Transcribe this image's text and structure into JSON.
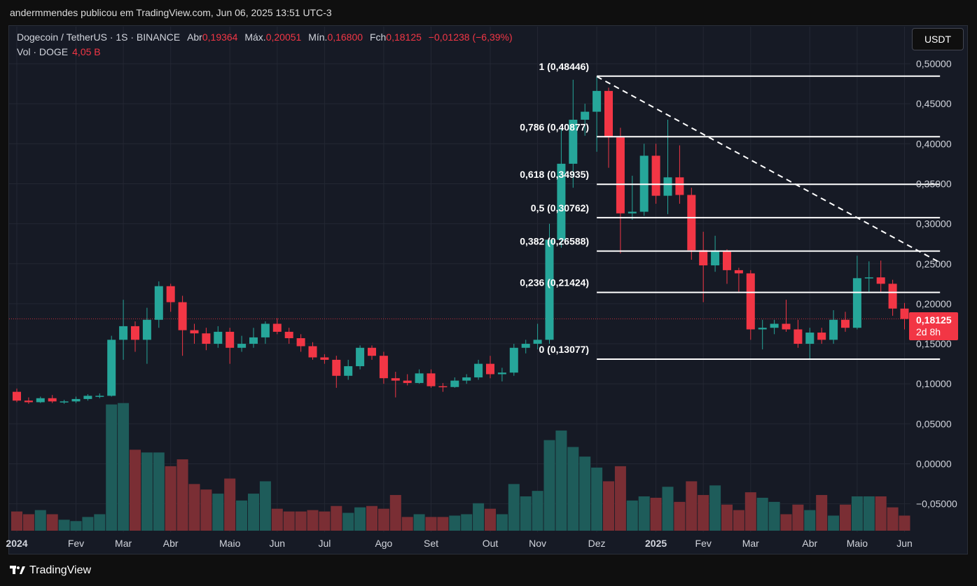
{
  "header": {
    "caption": "andermmendes publicou em TradingView.com, Jun 06, 2025 13:51 UTC-3"
  },
  "legend": {
    "symbol": "Dogecoin / TetherUS · 1S · BINANCE",
    "open_label": "Abr",
    "open": "0,19364",
    "high_label": "Máx.",
    "high": "0,20051",
    "low_label": "Mín.",
    "low": "0,16800",
    "close_label": "Fch",
    "close": "0,18125",
    "change": "−0,01238 (−6,39%)",
    "vol_label": "Vol · DOGE",
    "vol": "4,05 B"
  },
  "currency_button": "USDT",
  "last_price": {
    "price": "0,18125",
    "countdown": "2d 8h"
  },
  "brand": "TradingView",
  "colors": {
    "up": "#26a69a",
    "down": "#f23645",
    "background": "#161a25",
    "grid": "#232733",
    "fib_line": "#ffffff",
    "trend_line": "#ffffff"
  },
  "chart_data": {
    "type": "candlestick",
    "ylim": [
      -0.085,
      0.52
    ],
    "y_ticks": [
      {
        "value": 0.5,
        "label": "0,50000"
      },
      {
        "value": 0.45,
        "label": "0,45000"
      },
      {
        "value": 0.4,
        "label": "0,40000"
      },
      {
        "value": 0.35,
        "label": "0,35000"
      },
      {
        "value": 0.3,
        "label": "0,30000"
      },
      {
        "value": 0.25,
        "label": "0,25000"
      },
      {
        "value": 0.2,
        "label": "0,20000"
      },
      {
        "value": 0.15,
        "label": "0,15000"
      },
      {
        "value": 0.1,
        "label": "0,10000"
      },
      {
        "value": 0.05,
        "label": "0,05000"
      },
      {
        "value": 0.0,
        "label": "0,00000"
      },
      {
        "value": -0.05,
        "label": "−0,05000"
      }
    ],
    "x_ticks": [
      {
        "index": 0,
        "label": "2024"
      },
      {
        "index": 5,
        "label": "Fev"
      },
      {
        "index": 9,
        "label": "Mar"
      },
      {
        "index": 13,
        "label": "Abr"
      },
      {
        "index": 18,
        "label": "Maio"
      },
      {
        "index": 22,
        "label": "Jun"
      },
      {
        "index": 26,
        "label": "Jul"
      },
      {
        "index": 31,
        "label": "Ago"
      },
      {
        "index": 35,
        "label": "Set"
      },
      {
        "index": 40,
        "label": "Out"
      },
      {
        "index": 44,
        "label": "Nov"
      },
      {
        "index": 49,
        "label": "Dez"
      },
      {
        "index": 54,
        "label": "2025"
      },
      {
        "index": 58,
        "label": "Fev"
      },
      {
        "index": 62,
        "label": "Mar"
      },
      {
        "index": 67,
        "label": "Abr"
      },
      {
        "index": 71,
        "label": "Maio"
      },
      {
        "index": 75,
        "label": "Jun"
      }
    ],
    "candles": [
      [
        0.09,
        0.094,
        0.077,
        0.079
      ],
      [
        0.079,
        0.083,
        0.075,
        0.077
      ],
      [
        0.077,
        0.084,
        0.076,
        0.082
      ],
      [
        0.082,
        0.086,
        0.076,
        0.078
      ],
      [
        0.078,
        0.08,
        0.075,
        0.078
      ],
      [
        0.078,
        0.084,
        0.076,
        0.081
      ],
      [
        0.081,
        0.087,
        0.079,
        0.085
      ],
      [
        0.085,
        0.088,
        0.082,
        0.085
      ],
      [
        0.085,
        0.16,
        0.084,
        0.155
      ],
      [
        0.155,
        0.205,
        0.13,
        0.172
      ],
      [
        0.172,
        0.178,
        0.14,
        0.155
      ],
      [
        0.155,
        0.195,
        0.125,
        0.18
      ],
      [
        0.18,
        0.228,
        0.17,
        0.222
      ],
      [
        0.222,
        0.225,
        0.19,
        0.202
      ],
      [
        0.202,
        0.21,
        0.135,
        0.167
      ],
      [
        0.167,
        0.175,
        0.15,
        0.163
      ],
      [
        0.163,
        0.17,
        0.142,
        0.15
      ],
      [
        0.15,
        0.172,
        0.145,
        0.165
      ],
      [
        0.165,
        0.17,
        0.125,
        0.145
      ],
      [
        0.145,
        0.16,
        0.14,
        0.15
      ],
      [
        0.15,
        0.17,
        0.145,
        0.158
      ],
      [
        0.158,
        0.178,
        0.15,
        0.175
      ],
      [
        0.175,
        0.182,
        0.162,
        0.165
      ],
      [
        0.165,
        0.17,
        0.15,
        0.157
      ],
      [
        0.157,
        0.162,
        0.14,
        0.147
      ],
      [
        0.147,
        0.152,
        0.13,
        0.133
      ],
      [
        0.133,
        0.137,
        0.125,
        0.13
      ],
      [
        0.13,
        0.135,
        0.095,
        0.11
      ],
      [
        0.11,
        0.13,
        0.105,
        0.122
      ],
      [
        0.122,
        0.148,
        0.118,
        0.145
      ],
      [
        0.145,
        0.148,
        0.13,
        0.135
      ],
      [
        0.135,
        0.14,
        0.1,
        0.107
      ],
      [
        0.107,
        0.115,
        0.083,
        0.104
      ],
      [
        0.104,
        0.112,
        0.098,
        0.101
      ],
      [
        0.101,
        0.118,
        0.1,
        0.113
      ],
      [
        0.113,
        0.118,
        0.095,
        0.097
      ],
      [
        0.097,
        0.101,
        0.09,
        0.096
      ],
      [
        0.096,
        0.108,
        0.095,
        0.104
      ],
      [
        0.104,
        0.112,
        0.1,
        0.108
      ],
      [
        0.108,
        0.13,
        0.105,
        0.125
      ],
      [
        0.125,
        0.135,
        0.107,
        0.112
      ],
      [
        0.112,
        0.12,
        0.103,
        0.114
      ],
      [
        0.114,
        0.15,
        0.11,
        0.145
      ],
      [
        0.145,
        0.155,
        0.138,
        0.15
      ],
      [
        0.15,
        0.175,
        0.143,
        0.155
      ],
      [
        0.155,
        0.3,
        0.15,
        0.28
      ],
      [
        0.28,
        0.42,
        0.27,
        0.375
      ],
      [
        0.375,
        0.48,
        0.345,
        0.43
      ],
      [
        0.43,
        0.45,
        0.41,
        0.44
      ],
      [
        0.44,
        0.484,
        0.39,
        0.466
      ],
      [
        0.466,
        0.47,
        0.37,
        0.408
      ],
      [
        0.408,
        0.42,
        0.263,
        0.313
      ],
      [
        0.313,
        0.36,
        0.305,
        0.315
      ],
      [
        0.315,
        0.4,
        0.31,
        0.385
      ],
      [
        0.385,
        0.4,
        0.325,
        0.335
      ],
      [
        0.335,
        0.43,
        0.312,
        0.358
      ],
      [
        0.358,
        0.398,
        0.325,
        0.336
      ],
      [
        0.336,
        0.345,
        0.255,
        0.267
      ],
      [
        0.267,
        0.29,
        0.202,
        0.248
      ],
      [
        0.248,
        0.285,
        0.24,
        0.266
      ],
      [
        0.266,
        0.268,
        0.225,
        0.242
      ],
      [
        0.242,
        0.245,
        0.215,
        0.238
      ],
      [
        0.238,
        0.242,
        0.155,
        0.168
      ],
      [
        0.168,
        0.18,
        0.143,
        0.17
      ],
      [
        0.17,
        0.18,
        0.162,
        0.175
      ],
      [
        0.175,
        0.205,
        0.165,
        0.168
      ],
      [
        0.168,
        0.18,
        0.145,
        0.15
      ],
      [
        0.15,
        0.17,
        0.13,
        0.164
      ],
      [
        0.164,
        0.17,
        0.15,
        0.155
      ],
      [
        0.155,
        0.192,
        0.15,
        0.18
      ],
      [
        0.18,
        0.19,
        0.165,
        0.17
      ],
      [
        0.17,
        0.26,
        0.168,
        0.232
      ],
      [
        0.232,
        0.253,
        0.214,
        0.233
      ],
      [
        0.233,
        0.254,
        0.215,
        0.225
      ],
      [
        0.225,
        0.23,
        0.185,
        0.194
      ],
      [
        0.194,
        0.201,
        0.168,
        0.181
      ]
    ],
    "volume": [
      0.14,
      0.12,
      0.15,
      0.12,
      0.08,
      0.07,
      0.1,
      0.12,
      0.92,
      0.93,
      0.59,
      0.57,
      0.57,
      0.47,
      0.52,
      0.34,
      0.3,
      0.27,
      0.38,
      0.22,
      0.27,
      0.36,
      0.16,
      0.14,
      0.14,
      0.15,
      0.14,
      0.18,
      0.13,
      0.17,
      0.18,
      0.16,
      0.26,
      0.1,
      0.12,
      0.1,
      0.1,
      0.11,
      0.12,
      0.2,
      0.16,
      0.12,
      0.34,
      0.25,
      0.29,
      0.66,
      0.73,
      0.61,
      0.54,
      0.46,
      0.36,
      0.47,
      0.22,
      0.25,
      0.24,
      0.32,
      0.21,
      0.36,
      0.26,
      0.33,
      0.19,
      0.15,
      0.28,
      0.24,
      0.21,
      0.12,
      0.19,
      0.15,
      0.26,
      0.11,
      0.19,
      0.25,
      0.25,
      0.25,
      0.17,
      0.11
    ],
    "fib_levels": [
      {
        "ratio": "1",
        "price": 0.48446,
        "label": "1 (0,48446)"
      },
      {
        "ratio": "0,786",
        "price": 0.40877,
        "label": "0,786 (0,40877)"
      },
      {
        "ratio": "0,618",
        "price": 0.34935,
        "label": "0,618 (0,34935)"
      },
      {
        "ratio": "0,5",
        "price": 0.30762,
        "label": "0,5 (0,30762)"
      },
      {
        "ratio": "0,382",
        "price": 0.26588,
        "label": "0,382 (0,26588)"
      },
      {
        "ratio": "0,236",
        "price": 0.21424,
        "label": "0,236 (0,21424)"
      },
      {
        "ratio": "0",
        "price": 0.13077,
        "label": "0 (0,13077)"
      }
    ],
    "fib_from_index": 49,
    "fib_to_index": 78,
    "trendline": {
      "from_index": 49,
      "from_price": 0.484,
      "to_index": 78,
      "to_price": 0.25
    },
    "last_close": 0.18125,
    "grid": true
  }
}
